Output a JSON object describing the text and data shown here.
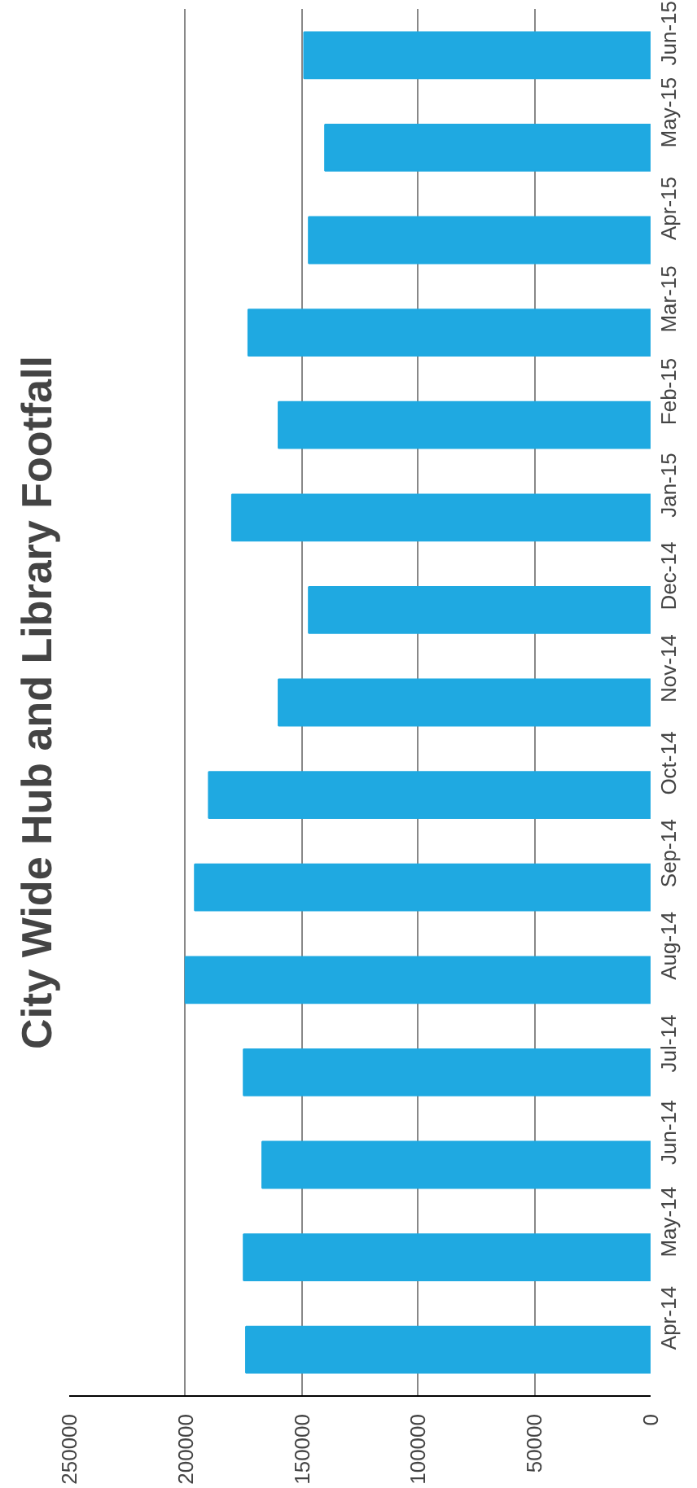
{
  "chart_data": {
    "type": "bar",
    "orientation": "horizontal",
    "title": "City Wide Hub and Library Footfall",
    "categories": [
      "Jun-15",
      "May-15",
      "Apr-15",
      "Mar-15",
      "Feb-15",
      "Jan-15",
      "Dec-14",
      "Nov-14",
      "Oct-14",
      "Sep-14",
      "Aug-14",
      "Jul-14",
      "Jun-14",
      "May-14",
      "Apr-14"
    ],
    "values": [
      149000,
      140000,
      147000,
      173000,
      160000,
      180000,
      147000,
      160000,
      190000,
      196000,
      200000,
      175000,
      167000,
      175000,
      174000
    ],
    "color": "#1fa9e1",
    "xlim": [
      250000,
      0
    ],
    "xticks": [
      250000,
      200000,
      150000,
      100000,
      50000,
      0
    ],
    "grid": "x"
  }
}
